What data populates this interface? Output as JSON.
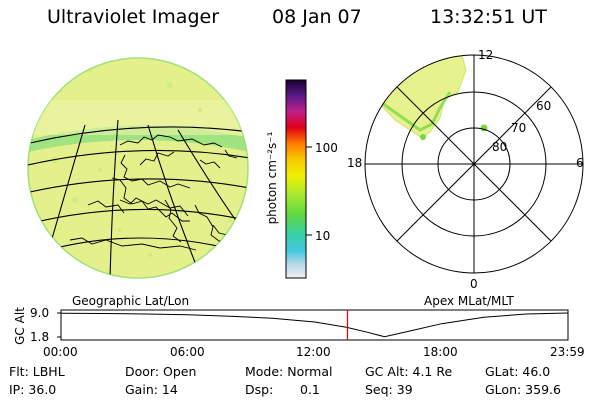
{
  "header": {
    "instrument": "Ultraviolet Imager",
    "date": "08 Jan 07",
    "time": "13:32:51 UT"
  },
  "colorbar": {
    "unit_label": "photon cm⁻²s⁻¹",
    "tick_100": "100",
    "tick_10": "10"
  },
  "polar": {
    "label_top": "12",
    "label_bottom": "0",
    "label_left": "18",
    "label_right": "6",
    "ring_60": "60",
    "ring_70": "70",
    "ring_80": "80"
  },
  "projections": {
    "left": "Geographic Lat/Lon",
    "right": "Apex MLat/MLT"
  },
  "altitude_plot": {
    "axis_label": "GC Alt",
    "ytick_high": "9.0",
    "ytick_low": "1.8",
    "xticks": [
      "00:00",
      "06:00",
      "12:00",
      "18:00",
      "23:59"
    ],
    "chart_data": {
      "type": "line",
      "x_hours": [
        0,
        2,
        4,
        6,
        8,
        10,
        12,
        13.5,
        14.5,
        15.3,
        16.5,
        18,
        20,
        22,
        23.98
      ],
      "y_altitude_re": [
        8.9,
        8.85,
        8.7,
        8.45,
        8.05,
        7.4,
        6.3,
        4.7,
        3.2,
        1.9,
        3.6,
        5.8,
        7.7,
        8.7,
        9.0
      ],
      "ylim": [
        1.8,
        9.0
      ],
      "current_time_hours": 13.55
    }
  },
  "info": {
    "row1": {
      "flt": "Flt: LBHL",
      "door": "Door: Open",
      "mode": "Mode: Normal",
      "gcalt": "GC Alt: 4.1 Re",
      "glat": "GLat: 46.0"
    },
    "row2": {
      "ip": "IP: 36.0",
      "gain": "Gain: 14",
      "dsp_label": "Dsp:",
      "dsp_value": "0.1",
      "seq": "Seq: 39",
      "glon": "GLon: 359.6"
    }
  },
  "colors": {
    "globe_fill": "#e4f08c",
    "globe_edge": "#9fe07a",
    "bright_green": "#79d63f",
    "marker_red": "#e00000"
  }
}
